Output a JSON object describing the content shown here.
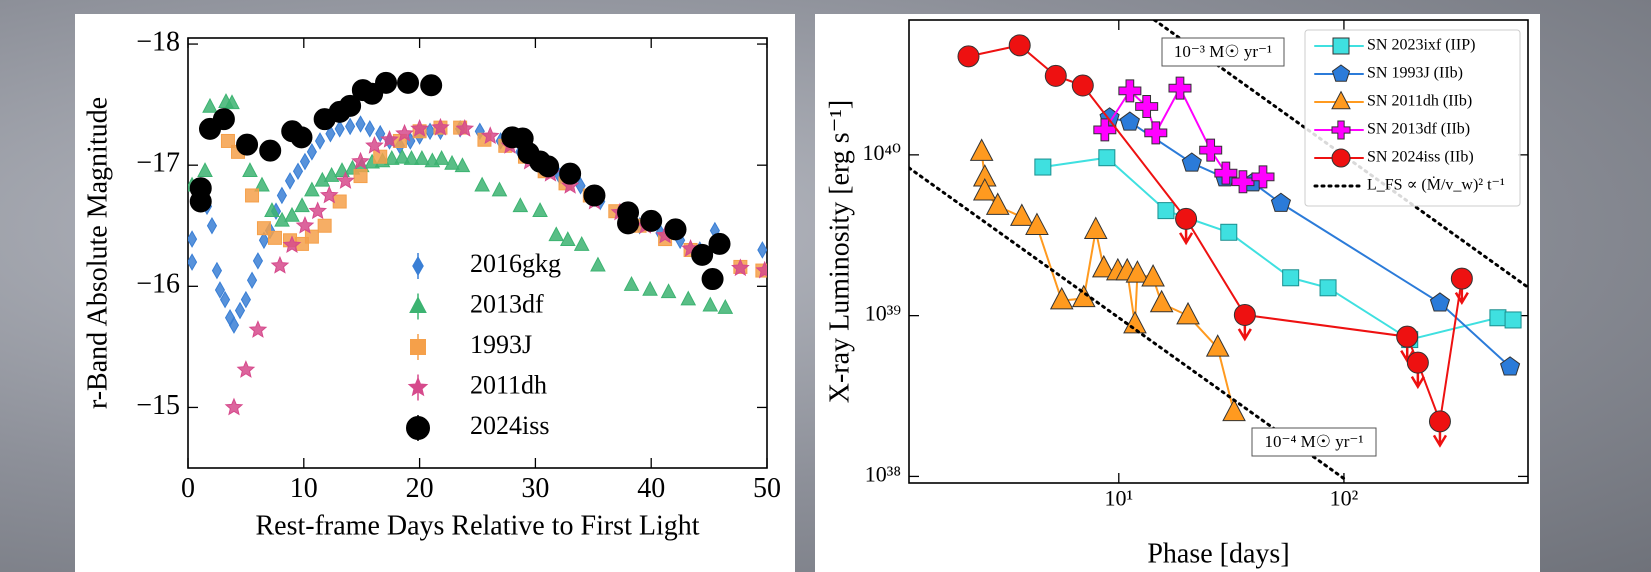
{
  "chart_data": [
    {
      "type": "scatter",
      "xlabel": "Rest-frame Days Relative to First Light",
      "ylabel": "r-Band Absolute Magnitude",
      "xlim": [
        0,
        50
      ],
      "xticks": [
        0,
        10,
        20,
        30,
        40,
        50
      ],
      "ylim": [
        -14.5,
        -18.05
      ],
      "yticks": [
        {
          "value": -18,
          "label": "−18"
        },
        {
          "value": -17,
          "label": "−17"
        },
        {
          "value": -16,
          "label": "−16"
        },
        {
          "value": -15,
          "label": "−15"
        }
      ],
      "legend": "lower center",
      "series": [
        {
          "name": "2016gkg",
          "color": "#3a7fd5",
          "marker": "diamond",
          "x": [
            0.35,
            0.35,
            1.04,
            1.64,
            2.07,
            2.5,
            2.76,
            3.2,
            3.63,
            3.97,
            4.49,
            5.0,
            5.53,
            6.04,
            6.56,
            7.08,
            7.6,
            8.11,
            8.81,
            9.5,
            10.1,
            10.7,
            11.4,
            12.3,
            13.1,
            14.0,
            14.9,
            15.7,
            16.6,
            17.4,
            18.3,
            19.2,
            20.0,
            20.9,
            21.8,
            23.5,
            25.2,
            27.0,
            28.7,
            30.4,
            32.1,
            33.9,
            35.6,
            37.3,
            39.0,
            40.8,
            42.5,
            44.2,
            45.5,
            49.6
          ],
          "values": [
            -16.39,
            -16.2,
            -16.7,
            -16.66,
            -16.5,
            -16.13,
            -15.97,
            -15.89,
            -15.74,
            -15.68,
            -15.8,
            -15.89,
            -16.05,
            -16.21,
            -16.38,
            -16.46,
            -16.62,
            -16.75,
            -16.87,
            -16.95,
            -17.03,
            -17.11,
            -17.2,
            -17.26,
            -17.3,
            -17.32,
            -17.34,
            -17.3,
            -17.26,
            -17.2,
            -17.16,
            -17.2,
            -17.24,
            -17.28,
            -17.28,
            -17.3,
            -17.28,
            -17.2,
            -17.11,
            -16.99,
            -16.91,
            -16.83,
            -16.7,
            -16.61,
            -16.5,
            -16.44,
            -16.38,
            -16.3,
            -16.46,
            -16.3
          ]
        },
        {
          "name": "2013df",
          "color": "#3cb371",
          "marker": "triangle",
          "x": [
            0.35,
            1.47,
            1.9,
            3.28,
            3.8,
            5.35,
            6.39,
            7.25,
            8.12,
            8.98,
            9.85,
            10.7,
            11.6,
            12.4,
            13.3,
            14.2,
            15.0,
            15.9,
            16.8,
            17.6,
            18.5,
            19.3,
            20.2,
            21.1,
            21.9,
            22.8,
            23.7,
            25.4,
            26.9,
            28.7,
            30.4,
            31.8,
            32.8,
            34.0,
            35.4,
            38.3,
            39.9,
            41.5,
            43.2,
            45.1,
            46.4
          ],
          "values": [
            -16.83,
            -16.95,
            -17.48,
            -17.52,
            -17.51,
            -16.95,
            -16.83,
            -16.62,
            -16.54,
            -16.58,
            -16.66,
            -16.79,
            -16.87,
            -16.91,
            -16.95,
            -16.97,
            -16.99,
            -17.02,
            -17.03,
            -17.05,
            -17.06,
            -17.05,
            -17.05,
            -17.03,
            -17.05,
            -17.01,
            -16.99,
            -16.83,
            -16.79,
            -16.66,
            -16.62,
            -16.42,
            -16.38,
            -16.34,
            -16.17,
            -16.01,
            -15.97,
            -15.95,
            -15.89,
            -15.84,
            -15.82
          ]
        },
        {
          "name": "1993J",
          "color": "#f5a04a",
          "marker": "square",
          "x": [
            3.45,
            4.32,
            5.53,
            6.56,
            7.51,
            8.81,
            9.84,
            10.7,
            11.8,
            13.1,
            14.9,
            16.6,
            18.3,
            20.0,
            21.8,
            23.5,
            25.6,
            27.4,
            29.1,
            30.8,
            32.6,
            34.7,
            36.9,
            39.0,
            41.2,
            43.4,
            47.7,
            49.6
          ],
          "values": [
            -17.2,
            -17.11,
            -16.75,
            -16.48,
            -16.4,
            -16.38,
            -16.35,
            -16.41,
            -16.5,
            -16.7,
            -16.91,
            -17.07,
            -17.2,
            -17.28,
            -17.31,
            -17.31,
            -17.21,
            -17.16,
            -17.07,
            -16.95,
            -16.85,
            -16.75,
            -16.62,
            -16.5,
            -16.39,
            -16.3,
            -16.16,
            -16.13
          ]
        },
        {
          "name": "2011dh",
          "color": "#d64a8c",
          "marker": "star",
          "x": [
            3.97,
            5.0,
            6.04,
            7.94,
            8.98,
            10.1,
            11.2,
            12.2,
            13.6,
            14.9,
            16.1,
            17.4,
            18.7,
            20.0,
            21.8,
            23.9,
            26.1,
            27.8,
            29.5,
            31.3,
            33.0,
            35.1,
            37.3,
            39.5,
            41.2,
            43.4,
            47.7,
            49.8
          ],
          "values": [
            -15.0,
            -15.31,
            -15.64,
            -16.17,
            -16.34,
            -16.5,
            -16.62,
            -16.75,
            -16.87,
            -17.03,
            -17.16,
            -17.21,
            -17.26,
            -17.3,
            -17.31,
            -17.3,
            -17.24,
            -17.16,
            -17.03,
            -16.93,
            -16.83,
            -16.7,
            -16.61,
            -16.5,
            -16.42,
            -16.31,
            -16.15,
            -16.13
          ]
        },
        {
          "name": "2024iss",
          "color": "#000000",
          "marker": "circle",
          "x": [
            1.1,
            1.1,
            1.9,
            3.1,
            5.1,
            7.1,
            9.0,
            9.8,
            11.8,
            13.1,
            14.0,
            15.1,
            15.9,
            17.1,
            19.0,
            21.0,
            28.0,
            28.9,
            29.4,
            30.4,
            31.1,
            33.0,
            35.1,
            38.0,
            38.0,
            40.0,
            42.1,
            44.4,
            45.3,
            45.9
          ],
          "values": [
            -16.81,
            -16.7,
            -17.3,
            -17.38,
            -17.17,
            -17.12,
            -17.28,
            -17.23,
            -17.38,
            -17.44,
            -17.49,
            -17.62,
            -17.59,
            -17.68,
            -17.68,
            -17.66,
            -17.23,
            -17.22,
            -17.1,
            -17.03,
            -16.99,
            -16.93,
            -16.75,
            -16.61,
            -16.52,
            -16.54,
            -16.47,
            -16.26,
            -16.06,
            -16.35
          ]
        }
      ]
    },
    {
      "type": "line",
      "xlabel": "Phase [days]",
      "ylabel": "X-ray Luminosity [erg s⁻¹]",
      "xscale": "log",
      "yscale": "log",
      "xlim": [
        1.17,
        657
      ],
      "xticks": [
        {
          "value": 10,
          "label": "10¹"
        },
        {
          "value": 100,
          "label": "10²"
        }
      ],
      "ylim": [
        9.1e+37,
        6.9e+40
      ],
      "yticks": [
        {
          "value": 1e+38,
          "label": "10³⁸"
        },
        {
          "value": 1e+39,
          "label": "10³⁹"
        },
        {
          "value": 1e+40,
          "label": "10⁴⁰"
        }
      ],
      "legend": "upper right",
      "annotations": [
        "10⁻³ M☉ yr⁻¹",
        "10⁻⁴ M☉ yr⁻¹"
      ],
      "series": [
        {
          "name": "SN 2023ixf (IIP)",
          "color": "#3fe0e0",
          "marker": "square",
          "x": [
            4.6,
            8.85,
            16.2,
            30.8,
            58,
            85,
            196,
            483,
            564
          ],
          "values": [
            8.4e+39,
            9.6e+39,
            4.5e+39,
            3.3e+39,
            1.72e+39,
            1.49e+39,
            7.1e+38,
            9.7e+38,
            9.4e+38
          ]
        },
        {
          "name": "SN 1993J (IIb)",
          "color": "#2b7bd9",
          "marker": "pentagon",
          "x": [
            9.1,
            11.2,
            21.1,
            29.6,
            39.4,
            52.5,
            267,
            547
          ],
          "values": [
            1.7e+40,
            1.6e+40,
            8.9e+39,
            7.2e+39,
            6.7e+39,
            5e+39,
            1.2e+39,
            4.8e+38
          ]
        },
        {
          "name": "SN 2011dh (IIb)",
          "color": "#ff9a1f",
          "marker": "triangle",
          "x": [
            2.46,
            2.54,
            2.54,
            2.9,
            3.71,
            4.33,
            5.58,
            6.99,
            7.9,
            8.58,
            9.9,
            10.9,
            11.8,
            12.1,
            14.2,
            15.5,
            20.3,
            27.5,
            32.5
          ],
          "values": [
            1.04e+40,
            7.2e+39,
            5.9e+39,
            4.8e+39,
            4.1e+39,
            3.6e+39,
            1.24e+39,
            1.28e+39,
            3.4e+39,
            1.96e+39,
            1.88e+39,
            1.88e+39,
            8.8e+38,
            1.82e+39,
            1.72e+39,
            1.19e+39,
            1e+39,
            6.3e+38,
            2.5e+38
          ]
        },
        {
          "name": "SN 2013df (IIb)",
          "color": "#ff00ff",
          "marker": "plus",
          "x": [
            8.67,
            11.2,
            13.3,
            14.6,
            18.7,
            25.6,
            29.9,
            35.6,
            43.7
          ],
          "values": [
            1.43e+40,
            2.5e+40,
            2e+40,
            1.37e+40,
            2.6e+40,
            1.07e+40,
            7.7e+39,
            6.8e+39,
            7.3e+39
          ]
        },
        {
          "name": "SN 2024iss (IIb)",
          "color": "#ee1111",
          "marker": "circle",
          "x": [
            2.15,
            3.63,
            5.25,
            6.92,
            19.9,
            36.3,
            191,
            213,
            267,
            334
          ],
          "values": [
            4.1e+40,
            4.8e+40,
            3.1e+40,
            2.7e+40,
            4e+39,
            1.01e+39,
            7.4e+38,
            5.1e+38,
            2.2e+38,
            1.7e+39
          ],
          "upper_limits": [
            false,
            false,
            false,
            false,
            true,
            true,
            true,
            true,
            true,
            true
          ]
        },
        {
          "name": "L_FS ∝ (Ṁ/v_w)² t⁻¹",
          "color": "#000000",
          "dash": "dotted",
          "x": [
            1.17,
            100,
            null,
            14.4,
            657
          ],
          "values": [
            8.3e+39,
            9.7e+37,
            null,
            6.9e+40,
            1.5e+39
          ]
        }
      ]
    }
  ]
}
